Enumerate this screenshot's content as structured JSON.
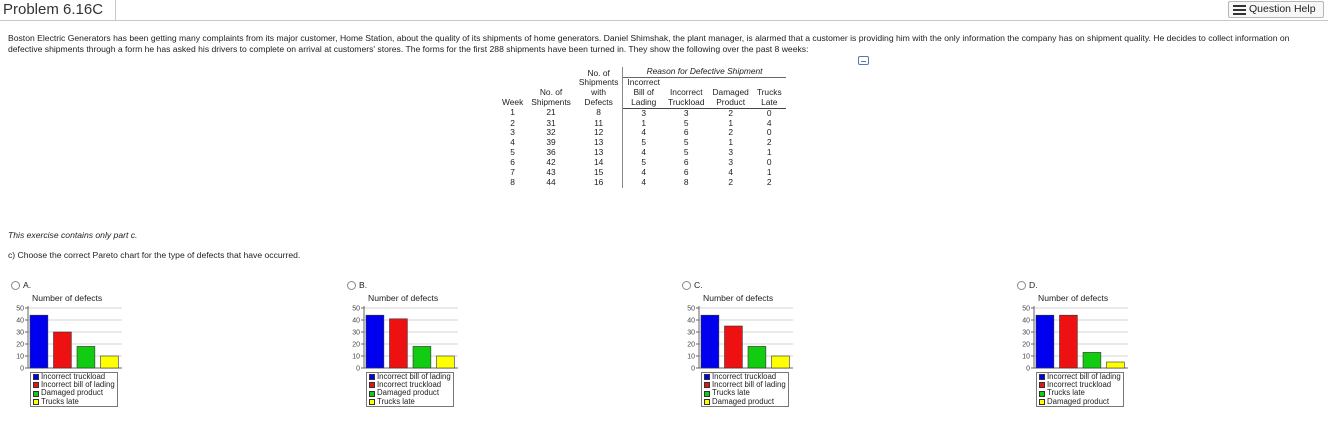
{
  "header": {
    "title": "Problem 6.16C",
    "help_label": "Question Help",
    "help_icon": "list-icon"
  },
  "intro_text": "Boston Electric Generators has been getting many complaints from its major customer, Home Station, about the quality of its shipments of home generators. Daniel Shimshak, the plant manager, is alarmed that a customer is providing him with the only information the company has on shipment quality. He decides to collect information on defective shipments through a form he has asked his drivers to complete on arrival at customers' stores. The forms for the first 288 shipments have been turned in. They show the following over the past 8 weeks:",
  "table": {
    "group_header": "Reason for Defective Shipment",
    "columns": {
      "week": "Week",
      "shipments": [
        "No. of",
        "Shipments"
      ],
      "defects": [
        "No. of",
        "Shipments",
        "with",
        "Defects"
      ],
      "bill": [
        "Incorrect",
        "Bill of",
        "Lading"
      ],
      "truckload": [
        "Incorrect",
        "Truckload"
      ],
      "damaged": [
        "Damaged",
        "Product"
      ],
      "late": [
        "Trucks",
        "Late"
      ]
    },
    "rows": [
      [
        "1",
        "21",
        "8",
        "3",
        "3",
        "2",
        "0"
      ],
      [
        "2",
        "31",
        "11",
        "1",
        "5",
        "1",
        "4"
      ],
      [
        "3",
        "32",
        "12",
        "4",
        "6",
        "2",
        "0"
      ],
      [
        "4",
        "39",
        "13",
        "5",
        "5",
        "1",
        "2"
      ],
      [
        "5",
        "36",
        "13",
        "4",
        "5",
        "3",
        "1"
      ],
      [
        "6",
        "42",
        "14",
        "5",
        "6",
        "3",
        "0"
      ],
      [
        "7",
        "43",
        "15",
        "4",
        "6",
        "4",
        "1"
      ],
      [
        "8",
        "44",
        "16",
        "4",
        "8",
        "2",
        "2"
      ]
    ]
  },
  "part_note": "This exercise contains only part c.",
  "question": "c) Choose the correct Pareto chart for the type of defects that have occurred.",
  "colors": {
    "blue": "#0000ee",
    "red": "#ee1111",
    "green": "#11cc11",
    "yellow": "#ffff00"
  },
  "chart_data": [
    {
      "type": "bar",
      "option": "A.",
      "title": "Number of defects",
      "ylim": [
        0,
        50
      ],
      "yticks": [
        "0",
        "10",
        "20",
        "30",
        "40",
        "50"
      ],
      "categories": [
        "Incorrect truckload",
        "Incorrect bill of lading",
        "Damaged product",
        "Trucks late"
      ],
      "values": [
        44,
        30,
        18,
        10
      ],
      "colors": [
        "#0000ee",
        "#ee1111",
        "#11cc11",
        "#ffff00"
      ]
    },
    {
      "type": "bar",
      "option": "B.",
      "title": "Number of defects",
      "ylim": [
        0,
        50
      ],
      "yticks": [
        "0",
        "10",
        "20",
        "30",
        "40",
        "50"
      ],
      "categories": [
        "Incorrect bill of lading",
        "Incorrect truckload",
        "Damaged product",
        "Trucks late"
      ],
      "values": [
        44,
        41,
        18,
        10
      ],
      "colors": [
        "#0000ee",
        "#ee1111",
        "#11cc11",
        "#ffff00"
      ]
    },
    {
      "type": "bar",
      "option": "C.",
      "title": "Number of defects",
      "ylim": [
        0,
        50
      ],
      "yticks": [
        "0",
        "10",
        "20",
        "30",
        "40",
        "50"
      ],
      "categories": [
        "Incorrect truckload",
        "Incorrect bill of lading",
        "Trucks late",
        "Damaged product"
      ],
      "values": [
        44,
        35,
        18,
        10
      ],
      "colors": [
        "#0000ee",
        "#ee1111",
        "#11cc11",
        "#ffff00"
      ]
    },
    {
      "type": "bar",
      "option": "D.",
      "title": "Number of defects",
      "ylim": [
        0,
        50
      ],
      "yticks": [
        "0",
        "10",
        "20",
        "30",
        "40",
        "50"
      ],
      "categories": [
        "Incorrect bill of lading",
        "Incorrect truckload",
        "Trucks late",
        "Damaged product"
      ],
      "values": [
        44,
        44,
        13,
        5
      ],
      "colors": [
        "#0000ee",
        "#ee1111",
        "#11cc11",
        "#ffff00"
      ]
    }
  ]
}
